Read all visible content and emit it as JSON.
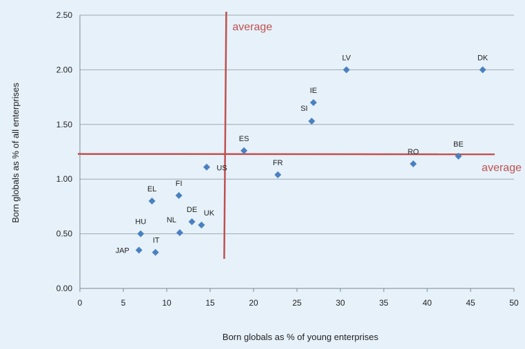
{
  "chart_data": {
    "type": "scatter",
    "xlabel": "Born globals as % of young enterprises",
    "ylabel": "Born globals as % of all enterprises",
    "xlim": [
      0,
      50
    ],
    "ylim": [
      0,
      2.5
    ],
    "x_ticks": [
      "0",
      "5",
      "10",
      "15",
      "20",
      "25",
      "30",
      "35",
      "40",
      "45",
      "50"
    ],
    "y_ticks": [
      "0.00",
      "0.50",
      "1.00",
      "1.50",
      "2.00",
      "2.50"
    ],
    "grid": "horizontal",
    "colors": {
      "points": "#4a80c0",
      "average_lines": "#c0504d",
      "grid": "#a0a8b0",
      "background": "#e6f1fa"
    },
    "points": [
      {
        "label": "JAP",
        "x": 6.8,
        "y": 0.35
      },
      {
        "label": "HU",
        "x": 7.0,
        "y": 0.5
      },
      {
        "label": "IT",
        "x": 8.7,
        "y": 0.33
      },
      {
        "label": "EL",
        "x": 8.3,
        "y": 0.8
      },
      {
        "label": "FI",
        "x": 11.4,
        "y": 0.85
      },
      {
        "label": "NL",
        "x": 11.5,
        "y": 0.51
      },
      {
        "label": "DE",
        "x": 12.9,
        "y": 0.61
      },
      {
        "label": "UK",
        "x": 14.0,
        "y": 0.58
      },
      {
        "label": "US",
        "x": 14.6,
        "y": 1.11
      },
      {
        "label": "ES",
        "x": 18.9,
        "y": 1.26
      },
      {
        "label": "FR",
        "x": 22.8,
        "y": 1.04
      },
      {
        "label": "SI",
        "x": 26.7,
        "y": 1.53
      },
      {
        "label": "IE",
        "x": 26.9,
        "y": 1.7
      },
      {
        "label": "LV",
        "x": 30.7,
        "y": 2.0
      },
      {
        "label": "RO",
        "x": 38.4,
        "y": 1.14
      },
      {
        "label": "BE",
        "x": 43.6,
        "y": 1.21
      },
      {
        "label": "DK",
        "x": 46.4,
        "y": 2.0
      }
    ],
    "average_lines": [
      {
        "orientation": "vertical",
        "value": 16.7,
        "label": "average"
      },
      {
        "orientation": "horizontal",
        "value": 1.23,
        "label": "average"
      }
    ]
  }
}
